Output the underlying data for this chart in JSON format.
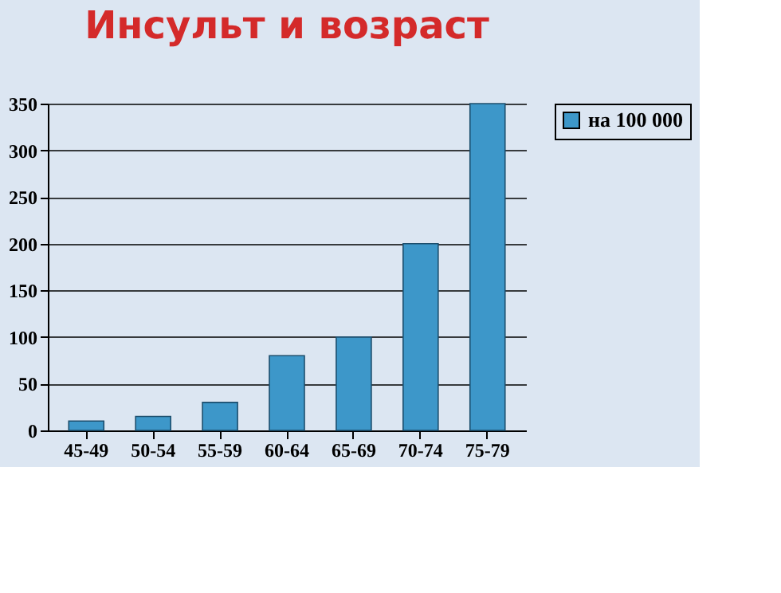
{
  "chart_data": {
    "type": "bar",
    "title": "Инсульт и возраст",
    "categories": [
      "45-49",
      "50-54",
      "55-59",
      "60-64",
      "65-69",
      "70-74",
      "75-79"
    ],
    "series": [
      {
        "name": "на 100 000",
        "color": "#3d97c9",
        "values": [
          10,
          15,
          30,
          80,
          100,
          200,
          350
        ]
      }
    ],
    "ylim": [
      0,
      350
    ],
    "yticks": [
      0,
      50,
      100,
      150,
      200,
      250,
      300,
      350
    ],
    "grid": "y",
    "legend": "right"
  }
}
